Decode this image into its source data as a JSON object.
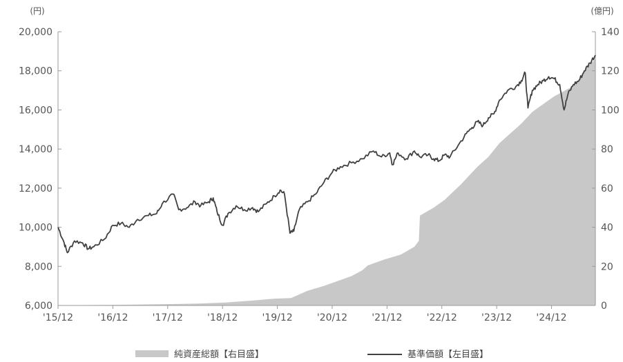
{
  "chart_data": {
    "type": "line",
    "left_axis_unit": "(円)",
    "right_axis_unit": "(億円)",
    "left_ticks": [
      "6,000",
      "8,000",
      "10,000",
      "12,000",
      "14,000",
      "16,000",
      "18,000",
      "20,000"
    ],
    "right_ticks": [
      "0",
      "20",
      "40",
      "60",
      "80",
      "100",
      "120",
      "140"
    ],
    "x_ticks": [
      "'15/12",
      "'16/12",
      "'17/12",
      "'18/12",
      "'19/12",
      "'20/12",
      "'21/12",
      "'22/12",
      "'23/12",
      "'24/12"
    ],
    "ylim_left": [
      6000,
      20000
    ],
    "ylim_right": [
      0,
      140
    ],
    "xlim": [
      2015.95,
      2025.75
    ],
    "series": [
      {
        "name": "純資産総額【右目盛】",
        "axis": "right",
        "kind": "area",
        "color": "#c8c8c8",
        "points": [
          [
            2015.95,
            0
          ],
          [
            2016.5,
            0.2
          ],
          [
            2017.0,
            0.3
          ],
          [
            2017.5,
            0.5
          ],
          [
            2018.0,
            0.7
          ],
          [
            2018.5,
            1.0
          ],
          [
            2019.0,
            1.5
          ],
          [
            2019.5,
            2.5
          ],
          [
            2019.9,
            3.5
          ],
          [
            2020.2,
            3.8
          ],
          [
            2020.3,
            5.0
          ],
          [
            2020.5,
            7.5
          ],
          [
            2020.8,
            10.0
          ],
          [
            2021.0,
            12.0
          ],
          [
            2021.3,
            15.0
          ],
          [
            2021.5,
            18.0
          ],
          [
            2021.6,
            20.5
          ],
          [
            2021.9,
            23.5
          ],
          [
            2022.2,
            26.0
          ],
          [
            2022.45,
            30.0
          ],
          [
            2022.53,
            33.0
          ],
          [
            2022.55,
            46.0
          ],
          [
            2022.8,
            50.0
          ],
          [
            2023.0,
            54.0
          ],
          [
            2023.3,
            62.0
          ],
          [
            2023.6,
            71.0
          ],
          [
            2023.8,
            76.0
          ],
          [
            2024.0,
            83.0
          ],
          [
            2024.2,
            88.0
          ],
          [
            2024.4,
            93.0
          ],
          [
            2024.6,
            99.0
          ],
          [
            2024.8,
            103.0
          ],
          [
            2025.0,
            107.0
          ],
          [
            2025.2,
            110.0
          ],
          [
            2025.4,
            113.0
          ],
          [
            2025.6,
            122.0
          ],
          [
            2025.75,
            126.0
          ]
        ]
      },
      {
        "name": "基準価額【左目盛】",
        "axis": "left",
        "kind": "line",
        "color": "#404040",
        "points": [
          [
            2015.95,
            10000
          ],
          [
            2016.05,
            9300
          ],
          [
            2016.12,
            8700
          ],
          [
            2016.25,
            9300
          ],
          [
            2016.4,
            9200
          ],
          [
            2016.5,
            8900
          ],
          [
            2016.6,
            9000
          ],
          [
            2016.8,
            9400
          ],
          [
            2016.95,
            10100
          ],
          [
            2017.1,
            10200
          ],
          [
            2017.25,
            10000
          ],
          [
            2017.4,
            10400
          ],
          [
            2017.6,
            10600
          ],
          [
            2017.75,
            10700
          ],
          [
            2017.85,
            11200
          ],
          [
            2018.05,
            11700
          ],
          [
            2018.15,
            10900
          ],
          [
            2018.3,
            11000
          ],
          [
            2018.45,
            11300
          ],
          [
            2018.55,
            11100
          ],
          [
            2018.7,
            11300
          ],
          [
            2018.78,
            11500
          ],
          [
            2018.85,
            10800
          ],
          [
            2018.95,
            10100
          ],
          [
            2019.05,
            10700
          ],
          [
            2019.2,
            11100
          ],
          [
            2019.35,
            10900
          ],
          [
            2019.5,
            11000
          ],
          [
            2019.6,
            10800
          ],
          [
            2019.75,
            11200
          ],
          [
            2019.9,
            11600
          ],
          [
            2020.0,
            11900
          ],
          [
            2020.08,
            11700
          ],
          [
            2020.18,
            9700
          ],
          [
            2020.25,
            9800
          ],
          [
            2020.35,
            10900
          ],
          [
            2020.5,
            11300
          ],
          [
            2020.65,
            11700
          ],
          [
            2020.8,
            12300
          ],
          [
            2020.95,
            12800
          ],
          [
            2021.1,
            13100
          ],
          [
            2021.3,
            13300
          ],
          [
            2021.5,
            13500
          ],
          [
            2021.7,
            13900
          ],
          [
            2021.85,
            13600
          ],
          [
            2022.0,
            13800
          ],
          [
            2022.05,
            13200
          ],
          [
            2022.15,
            13800
          ],
          [
            2022.3,
            13500
          ],
          [
            2022.45,
            13900
          ],
          [
            2022.55,
            13600
          ],
          [
            2022.7,
            13700
          ],
          [
            2022.8,
            13500
          ],
          [
            2022.9,
            13400
          ],
          [
            2023.0,
            13700
          ],
          [
            2023.1,
            13600
          ],
          [
            2023.25,
            14200
          ],
          [
            2023.4,
            14800
          ],
          [
            2023.5,
            15100
          ],
          [
            2023.6,
            15400
          ],
          [
            2023.7,
            15200
          ],
          [
            2023.8,
            15600
          ],
          [
            2023.9,
            15800
          ],
          [
            2024.0,
            16500
          ],
          [
            2024.15,
            17000
          ],
          [
            2024.3,
            17200
          ],
          [
            2024.4,
            17500
          ],
          [
            2024.47,
            17900
          ],
          [
            2024.52,
            16100
          ],
          [
            2024.6,
            17000
          ],
          [
            2024.7,
            17300
          ],
          [
            2024.8,
            17500
          ],
          [
            2024.9,
            17700
          ],
          [
            2025.0,
            17600
          ],
          [
            2025.1,
            17300
          ],
          [
            2025.18,
            16000
          ],
          [
            2025.25,
            16800
          ],
          [
            2025.35,
            17300
          ],
          [
            2025.45,
            17500
          ],
          [
            2025.55,
            18000
          ],
          [
            2025.65,
            18400
          ],
          [
            2025.75,
            18800
          ]
        ]
      }
    ]
  },
  "colors": {
    "area": "#c8c8c8",
    "line": "#404040",
    "axis": "#9a9a9a"
  },
  "legend": [
    {
      "label": "純資産総額【右目盛】",
      "kind": "area",
      "color": "#c8c8c8"
    },
    {
      "label": "基準価額【左目盛】",
      "kind": "line",
      "color": "#404040"
    }
  ]
}
